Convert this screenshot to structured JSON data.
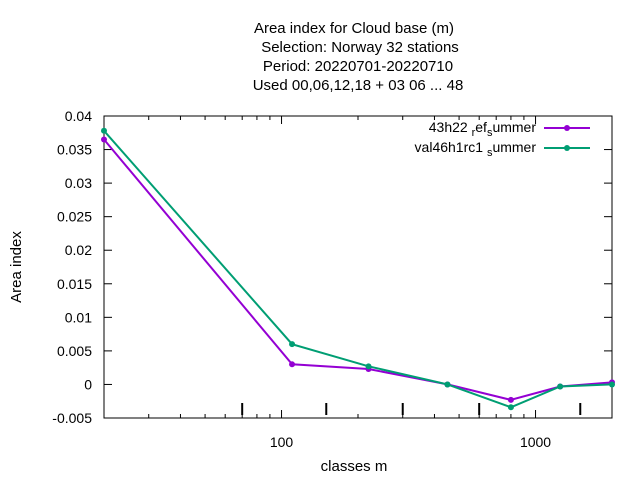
{
  "chart_data": {
    "type": "line",
    "title_lines": [
      "Area index  for Cloud base (m)",
      "Selection: Norway     32 stations",
      "Period: 20220701-20220710",
      "Used  00,06,12,18  + 03 06 ... 48"
    ],
    "xlabel": "classes m",
    "ylabel": "Area index",
    "xscale": "log",
    "xlim": [
      20,
      2000
    ],
    "ylim": [
      -0.005,
      0.04
    ],
    "xticks": [
      100,
      1000
    ],
    "yticks": [
      -0.005,
      0,
      0.005,
      0.01,
      0.015,
      0.02,
      0.025,
      0.03,
      0.035,
      0.04
    ],
    "ytick_labels": [
      "-0.005",
      "0",
      "0.005",
      "0.01",
      "0.015",
      "0.02",
      "0.025",
      "0.03",
      "0.035",
      "0.04"
    ],
    "xtick_labels": [
      "100",
      "1000"
    ],
    "grid": false,
    "legend_position": "top-right",
    "series": [
      {
        "name": "43h22 ref summer",
        "label_main1": "43h22 ",
        "label_sub1": "r",
        "label_main2": "ef",
        "label_sub2": "s",
        "label_main3": "ummer",
        "color": "#9400d3",
        "x": [
          20,
          110,
          220,
          450,
          800,
          1250,
          2000
        ],
        "y": [
          0.0365,
          0.003,
          0.0023,
          0.0,
          -0.0023,
          -0.0003,
          0.0003
        ]
      },
      {
        "name": "val46h1rc1 summer",
        "label_main1": "val46h1rc1 ",
        "label_sub1": "s",
        "label_main2": "ummer",
        "color": "#009e73",
        "x": [
          20,
          110,
          220,
          450,
          800,
          1250,
          2000
        ],
        "y": [
          0.0378,
          0.006,
          0.0027,
          0.0,
          -0.0034,
          -0.0003,
          0.0
        ]
      }
    ]
  }
}
